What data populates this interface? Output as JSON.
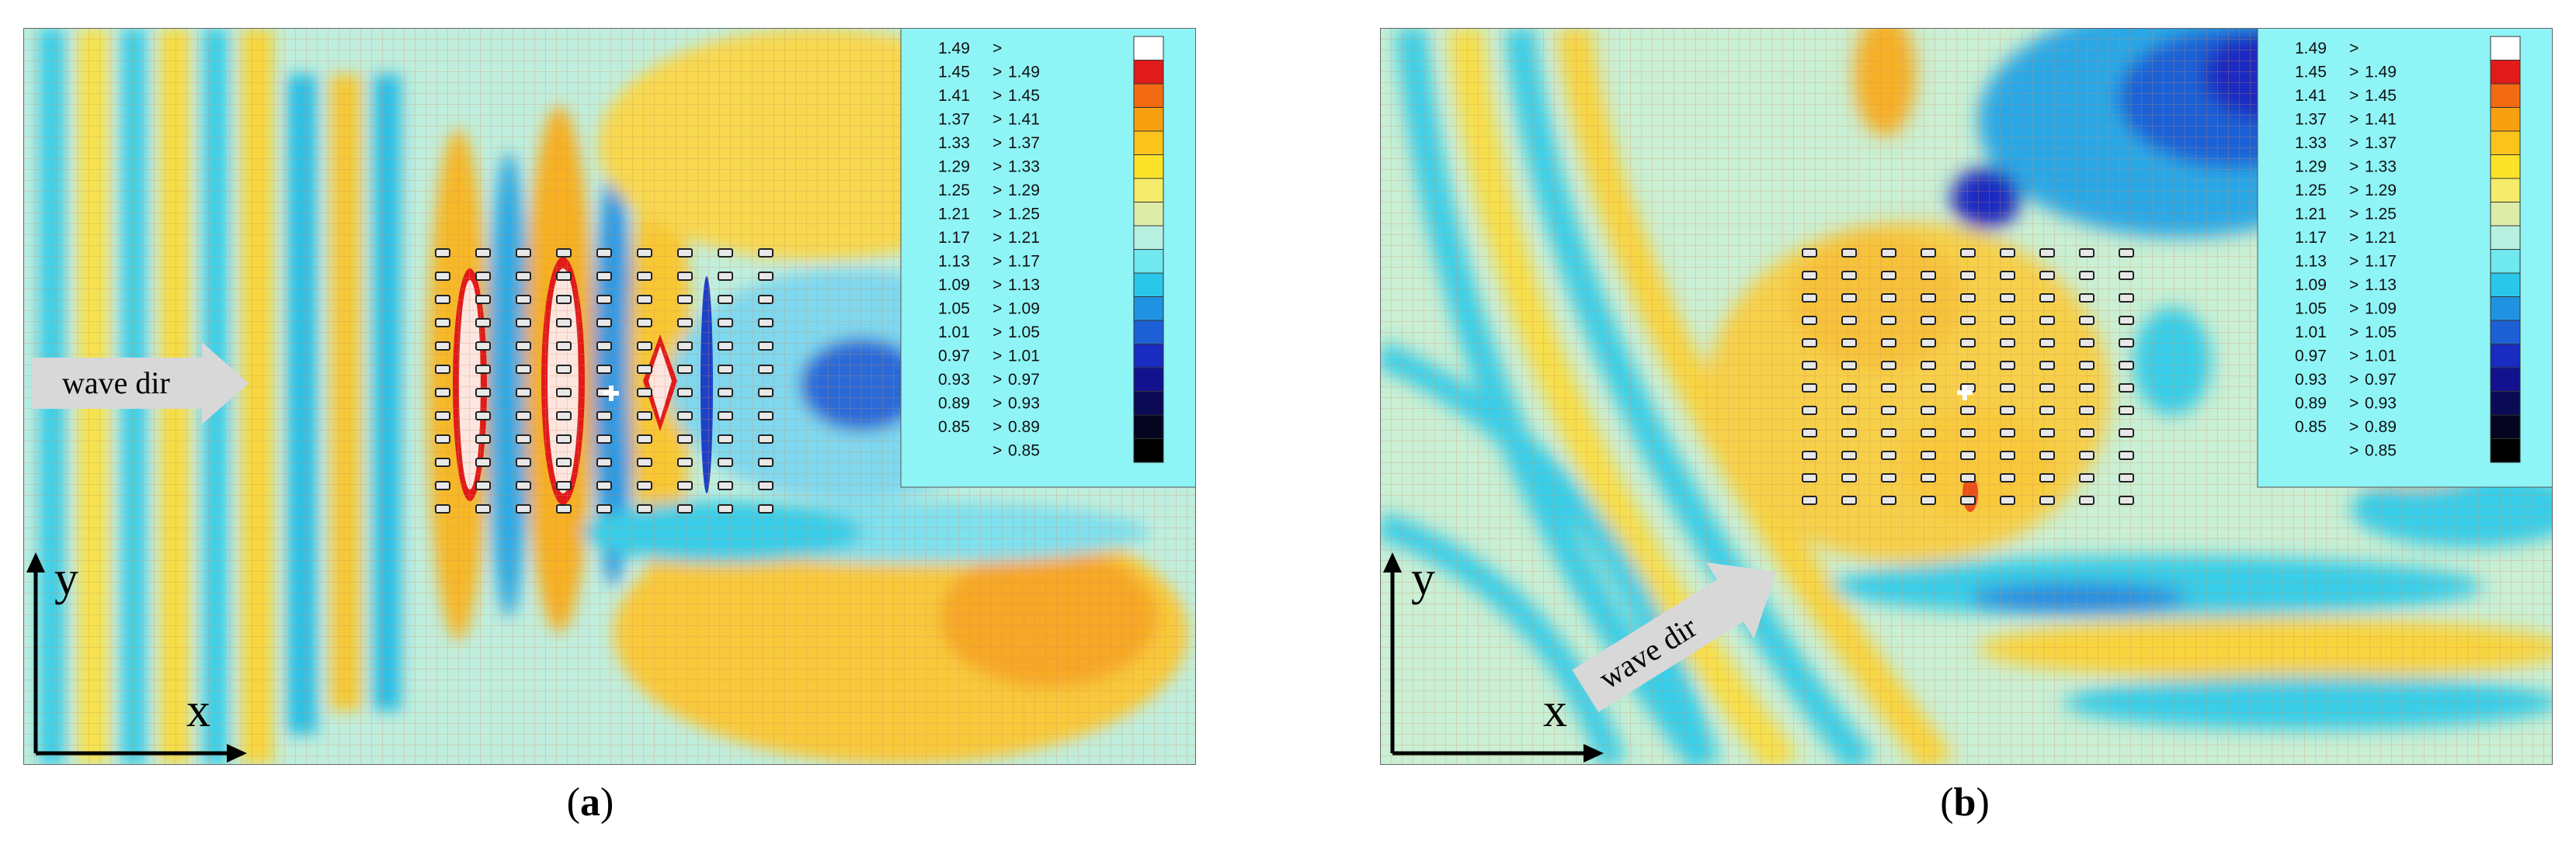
{
  "figure": {
    "panels": [
      {
        "id": "a",
        "caption_open": "(",
        "caption_letter": "a",
        "caption_close": ")",
        "arrow_label": "wave dir",
        "axis_x": "x",
        "axis_y": "y"
      },
      {
        "id": "b",
        "caption_open": "(",
        "caption_letter": "b",
        "caption_close": ")",
        "arrow_label": "wave dir",
        "axis_x": "x",
        "axis_y": "y"
      }
    ],
    "legend": {
      "rows": [
        {
          "low": "1.49",
          "sym": ">",
          "high": "",
          "color": "#ffffff"
        },
        {
          "low": "1.45",
          "sym": ">",
          "high": "1.49",
          "color": "#e11a1a"
        },
        {
          "low": "1.41",
          "sym": ">",
          "high": "1.45",
          "color": "#f26a12"
        },
        {
          "low": "1.37",
          "sym": ">",
          "high": "1.41",
          "color": "#f8a010"
        },
        {
          "low": "1.33",
          "sym": ">",
          "high": "1.37",
          "color": "#fbc31c"
        },
        {
          "low": "1.29",
          "sym": ">",
          "high": "1.33",
          "color": "#fde22a"
        },
        {
          "low": "1.25",
          "sym": ">",
          "high": "1.29",
          "color": "#f4ec6a"
        },
        {
          "low": "1.21",
          "sym": ">",
          "high": "1.25",
          "color": "#dfeca8"
        },
        {
          "low": "1.17",
          "sym": ">",
          "high": "1.21",
          "color": "#b8f0e0"
        },
        {
          "low": "1.13",
          "sym": ">",
          "high": "1.17",
          "color": "#6fe8ee"
        },
        {
          "low": "1.09",
          "sym": ">",
          "high": "1.13",
          "color": "#29c8ea"
        },
        {
          "low": "1.05",
          "sym": ">",
          "high": "1.09",
          "color": "#1f93e2"
        },
        {
          "low": "1.01",
          "sym": ">",
          "high": "1.05",
          "color": "#1d60d6"
        },
        {
          "low": "0.97",
          "sym": ">",
          "high": "1.01",
          "color": "#1a2bc0"
        },
        {
          "low": "0.93",
          "sym": ">",
          "high": "0.97",
          "color": "#12128e"
        },
        {
          "low": "0.89",
          "sym": ">",
          "high": "0.93",
          "color": "#0a0a55"
        },
        {
          "low": "0.85",
          "sym": ">",
          "high": "0.89",
          "color": "#050520"
        },
        {
          "low": "",
          "sym": ">",
          "high": "0.85",
          "color": "#000000"
        }
      ]
    }
  }
}
